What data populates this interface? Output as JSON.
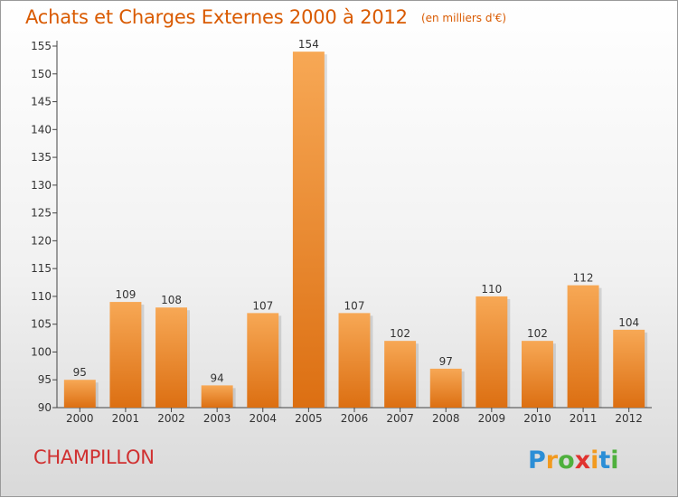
{
  "chart_data": {
    "type": "bar",
    "title": "Achats et Charges Externes 2000 à 2012",
    "unit_label": "(en milliers d'€)",
    "categories": [
      "2000",
      "2001",
      "2002",
      "2003",
      "2004",
      "2005",
      "2006",
      "2007",
      "2008",
      "2009",
      "2010",
      "2011",
      "2012"
    ],
    "values": [
      95,
      109,
      108,
      94,
      107,
      154,
      107,
      102,
      97,
      110,
      102,
      112,
      104
    ],
    "ylim": [
      90,
      155
    ],
    "yticks": [
      90,
      95,
      100,
      105,
      110,
      115,
      120,
      125,
      130,
      135,
      140,
      145,
      150,
      155
    ],
    "grid": false,
    "legend": "none",
    "bar_color": "#f0902a"
  },
  "footer": {
    "commune": "CHAMPILLON",
    "brand": "Proxiti"
  }
}
